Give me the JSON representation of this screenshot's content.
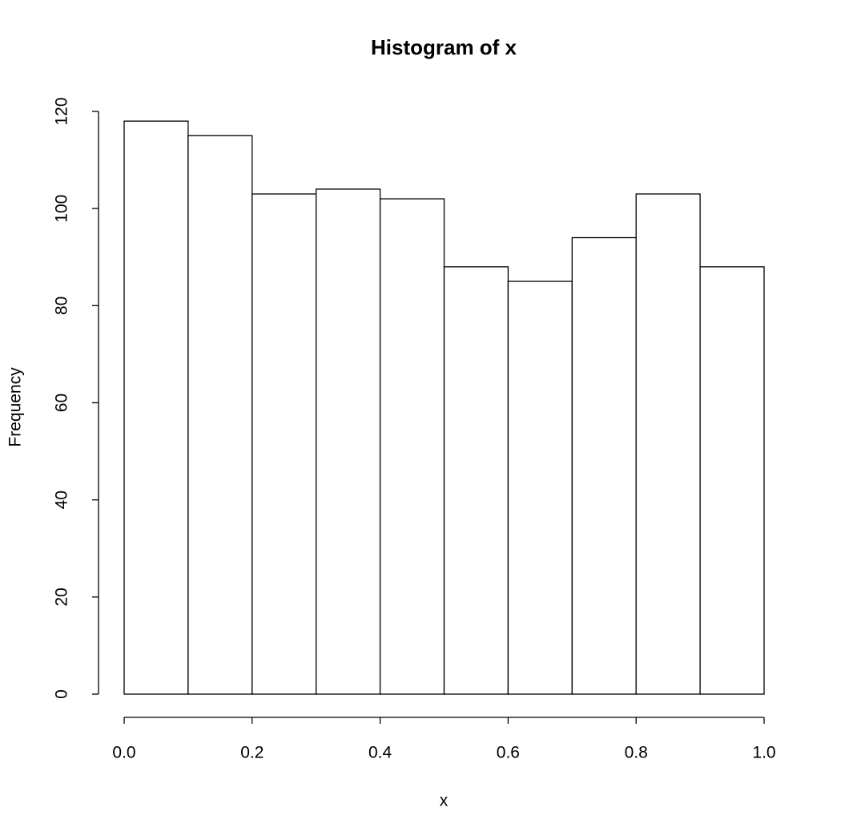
{
  "chart_data": {
    "type": "histogram",
    "title": "Histogram of x",
    "x_label": "x",
    "y_label": "Frequency",
    "bins": [
      0,
      0.1,
      0.2,
      0.3,
      0.4,
      0.5,
      0.6,
      0.7,
      0.8,
      0.9,
      1
    ],
    "values": [
      118,
      115,
      103,
      104,
      102,
      88,
      85,
      94,
      103,
      88
    ],
    "color": "#ffffff",
    "xlim": [
      0,
      1
    ],
    "ylim": [
      0,
      120
    ],
    "xticks": [
      {
        "value": 0,
        "label": "0.0"
      },
      0.2,
      0.4,
      0.6,
      0.8,
      {
        "value": 1,
        "label": "1.0"
      }
    ],
    "yticks": [
      0,
      20,
      40,
      60,
      80,
      100,
      120
    ]
  }
}
